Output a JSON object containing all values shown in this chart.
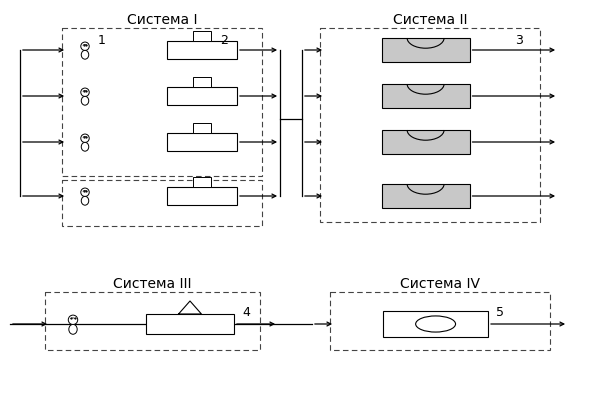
{
  "title_sys1": "Система I",
  "title_sys2": "Система II",
  "title_sys3": "Система III",
  "title_sys4": "Система IV",
  "label1": "1",
  "label2": "2",
  "label3": "3",
  "label4": "4",
  "label5": "5",
  "bg_color": "#ffffff",
  "gray_fill": "#c8c8c8",
  "title_fontsize": 10,
  "label_fontsize": 9,
  "fig_w": 6.0,
  "fig_h": 4.08,
  "dpi": 100
}
